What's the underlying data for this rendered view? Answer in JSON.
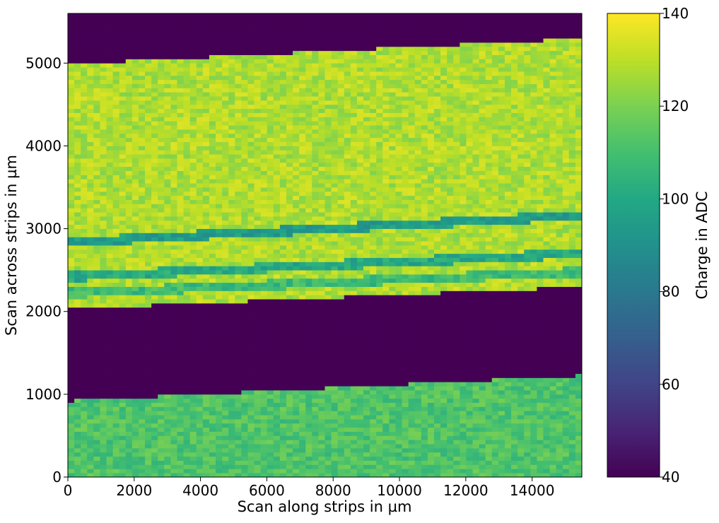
{
  "chart_data": {
    "type": "heatmap",
    "title": "",
    "xlabel": "Scan along strips in µm",
    "ylabel": "Scan across strips in µm",
    "xlim": [
      0,
      15500
    ],
    "ylim": [
      0,
      5600
    ],
    "x_ticks": [
      "0",
      "2000",
      "4000",
      "6000",
      "8000",
      "10000",
      "12000",
      "14000"
    ],
    "y_ticks": [
      "0",
      "1000",
      "2000",
      "3000",
      "4000",
      "5000"
    ],
    "colorbar": {
      "label": "Charge in ADC",
      "colormap": "viridis",
      "range": [
        40,
        140
      ],
      "ticks": [
        "40",
        "60",
        "80",
        "100",
        "120",
        "140"
      ]
    },
    "grid": false,
    "regions": [
      {
        "name": "lower-sensor",
        "y_bottom": [
          0,
          0
        ],
        "y_top": [
          920,
          1230
        ],
        "charge": 112
      },
      {
        "name": "gap",
        "y_bottom": [
          920,
          1230
        ],
        "y_top": [
          2030,
          2300
        ],
        "charge": 40
      },
      {
        "name": "upper-sensor",
        "y_bottom": [
          2030,
          2300
        ],
        "y_top": [
          4990,
          5300
        ],
        "charge": 128
      },
      {
        "name": "outside",
        "y_bottom": [
          4990,
          5300
        ],
        "y_top": [
          5600,
          5600
        ],
        "charge": 40
      }
    ],
    "low_charge_lines": [
      {
        "y_start": 2840,
        "y_end": 3160,
        "charge": 95
      },
      {
        "y_start": 2420,
        "y_end": 2700,
        "charge": 100
      },
      {
        "y_start": 2220,
        "y_end": 2480,
        "charge": 108
      }
    ]
  }
}
